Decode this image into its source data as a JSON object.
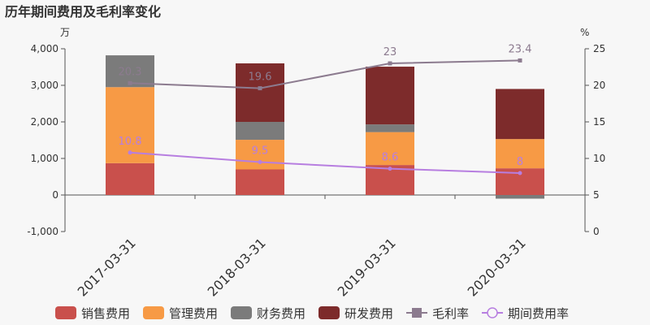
{
  "chart_data": {
    "type": "bar",
    "title": "历年期间费用及毛利率变化",
    "y_left_unit": "万",
    "y_right_unit": "%",
    "categories": [
      "2017-03-31",
      "2018-03-31",
      "2019-03-31",
      "2020-03-31"
    ],
    "y_left": {
      "min": -1000,
      "max": 4000,
      "ticks": [
        -1000,
        0,
        1000,
        2000,
        3000,
        4000
      ],
      "tick_labels": [
        "-1,000",
        "0",
        "1,000",
        "2,000",
        "3,000",
        "4,000"
      ]
    },
    "y_right": {
      "min": 0,
      "max": 25,
      "ticks": [
        0,
        5,
        10,
        15,
        20,
        25
      ],
      "tick_labels": [
        "0",
        "5",
        "10",
        "15",
        "20",
        "25"
      ]
    },
    "bar_series": [
      {
        "name": "销售费用",
        "color": "#c9504c",
        "values": [
          870,
          700,
          820,
          730
        ]
      },
      {
        "name": "管理费用",
        "color": "#f79a45",
        "values": [
          2080,
          810,
          900,
          800
        ]
      },
      {
        "name": "财务费用",
        "color": "#7b7b7b",
        "values": [
          870,
          490,
          210,
          -100
        ]
      },
      {
        "name": "研发费用",
        "color": "#7d2b2b",
        "values": [
          0,
          1600,
          1580,
          1370
        ]
      }
    ],
    "line_series": [
      {
        "name": "毛利率",
        "color": "#8c7b8f",
        "marker": "square",
        "values": [
          20.3,
          19.6,
          23,
          23.4
        ],
        "labels": [
          "20.3",
          "19.6",
          "23",
          "23.4"
        ]
      },
      {
        "name": "期间费用率",
        "color": "#b77ee0",
        "marker": "circle",
        "values": [
          10.8,
          9.5,
          8.6,
          8
        ],
        "labels": [
          "10.8",
          "9.5",
          "8.6",
          "8"
        ]
      }
    ],
    "grid": false,
    "legend_position": "bottom"
  }
}
